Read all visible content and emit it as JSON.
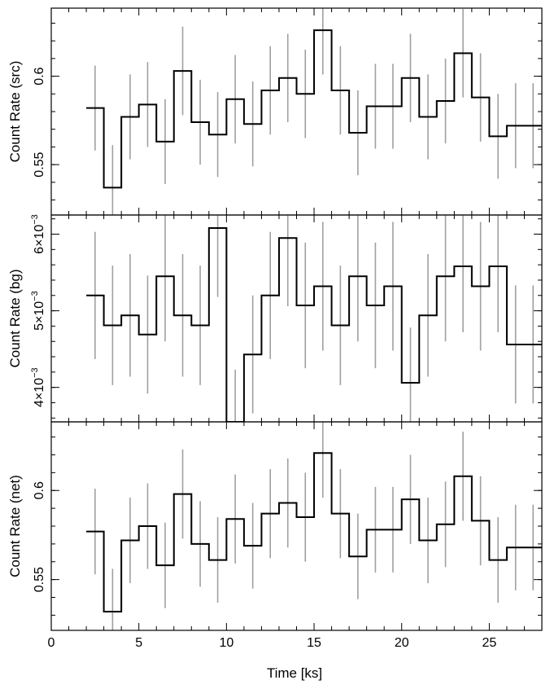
{
  "figure": {
    "xlabel": "Time [ks]",
    "xlim": [
      0,
      28
    ],
    "xticks": [
      0,
      5,
      10,
      15,
      20,
      25
    ],
    "line_color": "#000000",
    "errorbar_color": "#a0a0a0"
  },
  "chart_data": [
    {
      "type": "line",
      "style": "step",
      "ylabel": "Count Rate (src)",
      "ylim": [
        0.5215,
        0.6385
      ],
      "yticks": [
        0.55,
        0.6
      ],
      "ytick_labels": [
        "0.55",
        "0.6"
      ],
      "x": [
        2.5,
        3.5,
        4.5,
        5.5,
        6.5,
        7.5,
        8.5,
        9.5,
        10.5,
        11.5,
        12.5,
        13.5,
        14.5,
        15.5,
        16.5,
        17.5,
        18.5,
        19.5,
        20.5,
        21.5,
        22.5,
        23.5,
        24.5,
        25.5,
        26.5,
        27.5
      ],
      "y": [
        0.582,
        0.537,
        0.577,
        0.584,
        0.563,
        0.603,
        0.574,
        0.567,
        0.587,
        0.573,
        0.592,
        0.599,
        0.59,
        0.626,
        0.592,
        0.568,
        0.583,
        0.583,
        0.599,
        0.577,
        0.586,
        0.613,
        0.588,
        0.566,
        0.572,
        0.572
      ],
      "yerr": [
        0.024,
        0.024,
        0.024,
        0.024,
        0.024,
        0.025,
        0.024,
        0.024,
        0.025,
        0.024,
        0.025,
        0.025,
        0.025,
        0.025,
        0.025,
        0.024,
        0.024,
        0.024,
        0.025,
        0.024,
        0.024,
        0.025,
        0.025,
        0.024,
        0.024,
        0.024
      ]
    },
    {
      "type": "line",
      "style": "step",
      "ylabel": "Count Rate (bg)",
      "ylim": [
        0.00355,
        0.00625
      ],
      "yticks": [
        0.004,
        0.005,
        0.006
      ],
      "ytick_labels": [
        {
          "mant": "4×10",
          "exp": "−3"
        },
        {
          "mant": "5×10",
          "exp": "−3"
        },
        {
          "mant": "6×10",
          "exp": "−3"
        }
      ],
      "x": [
        2.5,
        3.5,
        4.5,
        5.5,
        6.5,
        7.5,
        8.5,
        9.5,
        10.5,
        11.5,
        12.5,
        13.5,
        14.5,
        15.5,
        16.5,
        17.5,
        18.5,
        19.5,
        20.5,
        21.5,
        22.5,
        23.5,
        24.5,
        25.5,
        26.5,
        27.5
      ],
      "y": [
        0.0052,
        0.00481,
        0.00494,
        0.00469,
        0.00545,
        0.00494,
        0.00481,
        0.00608,
        0.00355,
        0.00443,
        0.0052,
        0.00595,
        0.00507,
        0.00532,
        0.00481,
        0.00545,
        0.00507,
        0.00532,
        0.00406,
        0.00494,
        0.00545,
        0.00558,
        0.00532,
        0.00558,
        0.00456,
        0.00456
      ],
      "yerr": [
        0.00083,
        0.00078,
        0.0008,
        0.00077,
        0.00085,
        0.0008,
        0.00078,
        0.0009,
        0.00068,
        0.00077,
        0.00083,
        0.00089,
        0.00082,
        0.00084,
        0.00078,
        0.00085,
        0.00082,
        0.00084,
        0.00072,
        0.0008,
        0.00085,
        0.00086,
        0.00084,
        0.00086,
        0.00077,
        0.00077
      ]
    },
    {
      "type": "line",
      "style": "step",
      "ylabel": "Count Rate (net)",
      "ylim": [
        0.5215,
        0.6385
      ],
      "yticks": [
        0.55,
        0.6
      ],
      "ytick_labels": [
        "0.55",
        "0.6"
      ],
      "x": [
        2.5,
        3.5,
        4.5,
        5.5,
        6.5,
        7.5,
        8.5,
        9.5,
        10.5,
        11.5,
        12.5,
        13.5,
        14.5,
        15.5,
        16.5,
        17.5,
        18.5,
        19.5,
        20.5,
        21.5,
        22.5,
        23.5,
        24.5,
        25.5,
        26.5,
        27.5
      ],
      "y": [
        0.577,
        0.532,
        0.572,
        0.58,
        0.558,
        0.598,
        0.57,
        0.561,
        0.584,
        0.569,
        0.587,
        0.593,
        0.585,
        0.621,
        0.587,
        0.563,
        0.578,
        0.578,
        0.595,
        0.572,
        0.581,
        0.608,
        0.583,
        0.561,
        0.568,
        0.568
      ],
      "yerr": [
        0.024,
        0.024,
        0.024,
        0.024,
        0.024,
        0.025,
        0.024,
        0.024,
        0.025,
        0.024,
        0.025,
        0.025,
        0.025,
        0.025,
        0.025,
        0.024,
        0.024,
        0.024,
        0.025,
        0.024,
        0.024,
        0.025,
        0.025,
        0.024,
        0.024,
        0.024
      ]
    }
  ]
}
